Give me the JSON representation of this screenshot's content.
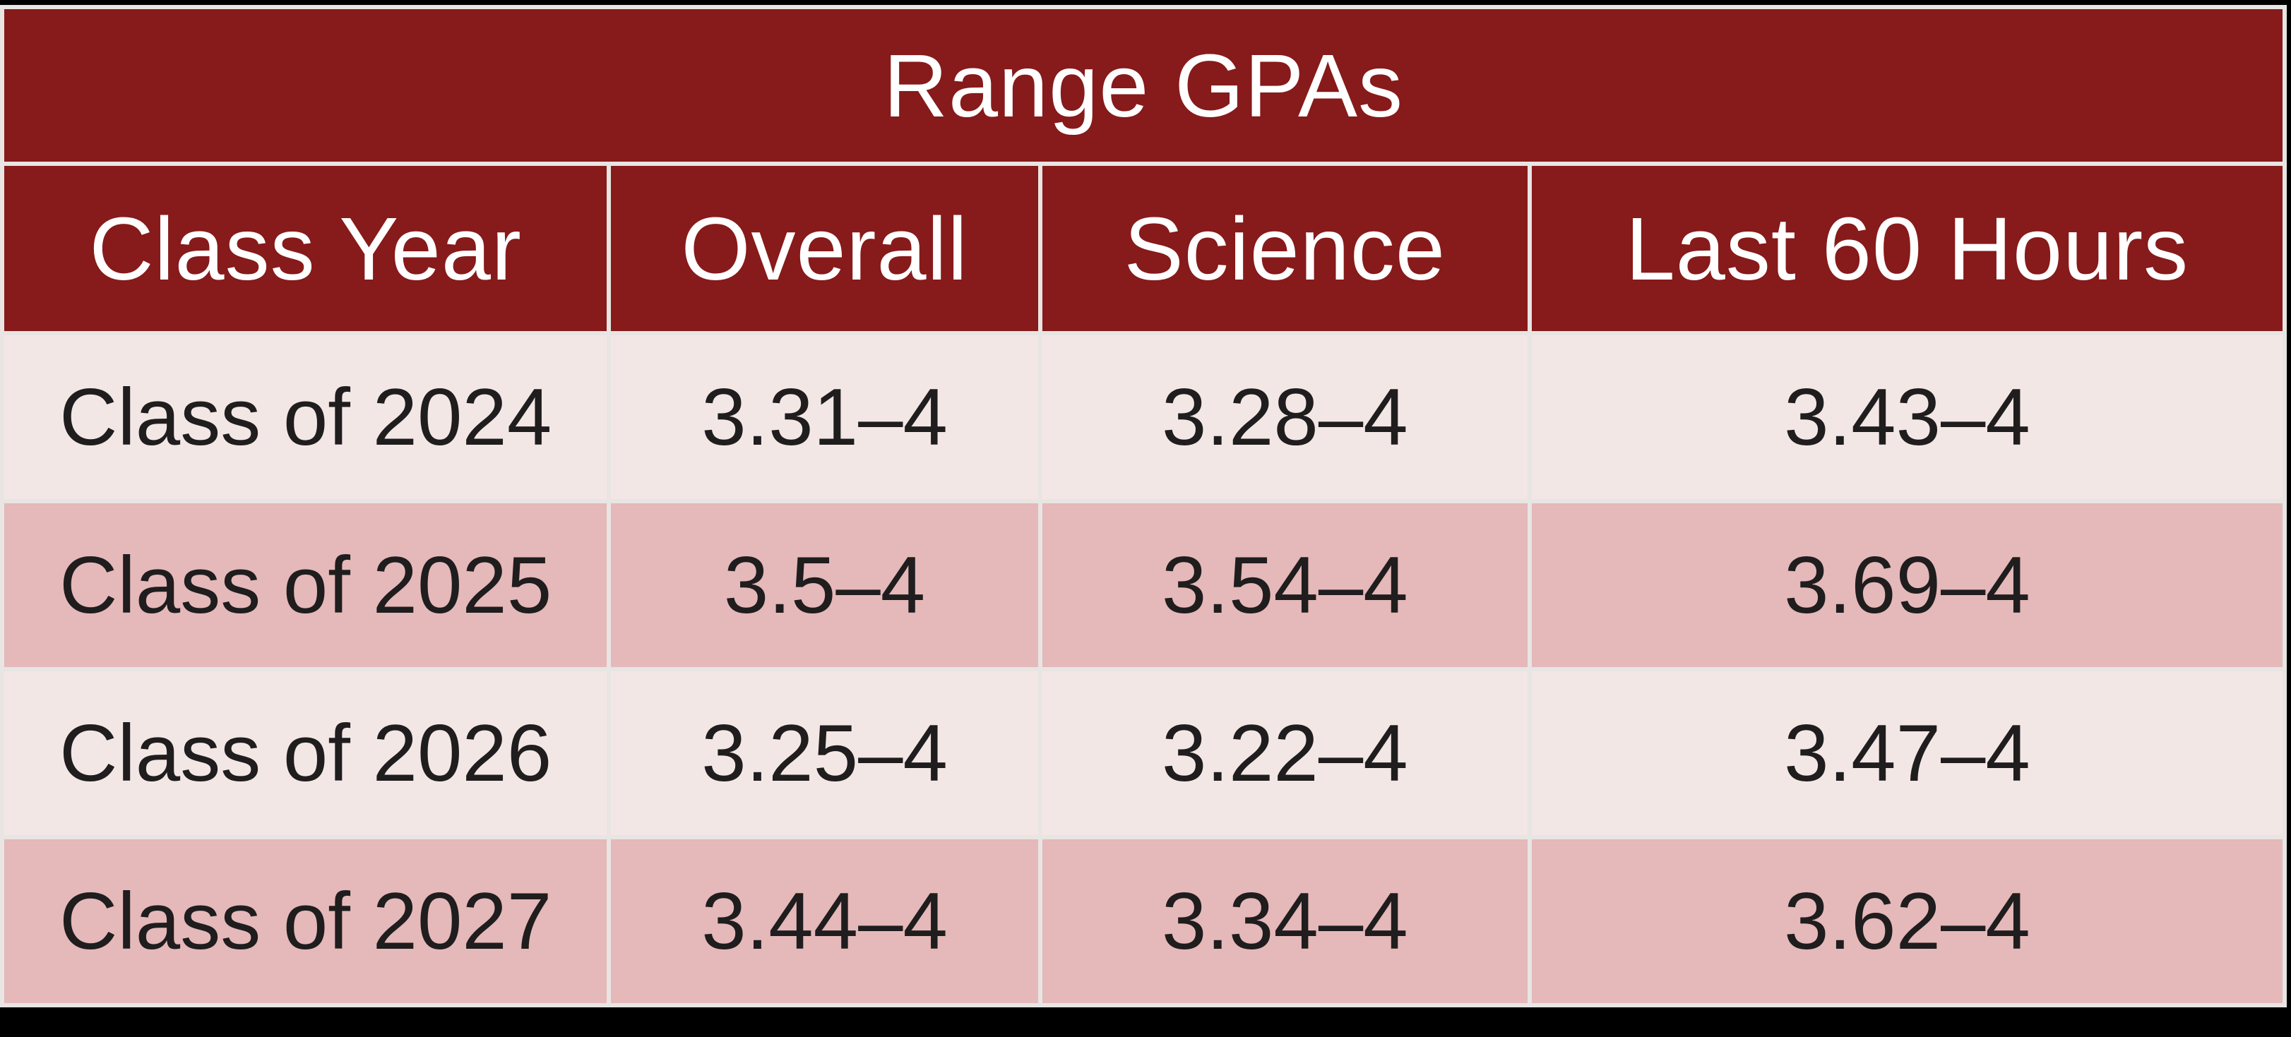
{
  "chart_data": {
    "type": "table",
    "title": "Range GPAs",
    "columns": [
      "Class Year",
      "Overall",
      "Science",
      "Last 60 Hours"
    ],
    "rows": [
      [
        "Class of 2024",
        "3.31–4",
        "3.28–4",
        "3.43–4"
      ],
      [
        "Class of 2025",
        "3.5–4",
        "3.54–4",
        "3.69–4"
      ],
      [
        "Class of 2026",
        "3.25–4",
        "3.22–4",
        "3.47–4"
      ],
      [
        "Class of 2027",
        "3.44–4",
        "3.34–4",
        "3.62–4"
      ]
    ],
    "layout": {
      "title_row": "spans all columns, centered",
      "row_striping": "light, dark alternating",
      "grid": "thin light-gray separators around every cell"
    }
  },
  "colors": {
    "page_bg": "#000000",
    "separator": "#E8E5E3",
    "maroon": "#871A1A",
    "row_light": "#F3E7E6",
    "row_dark": "#E5B8B9",
    "header_text": "#FFFFFF",
    "body_text": "#1F1D1E"
  }
}
